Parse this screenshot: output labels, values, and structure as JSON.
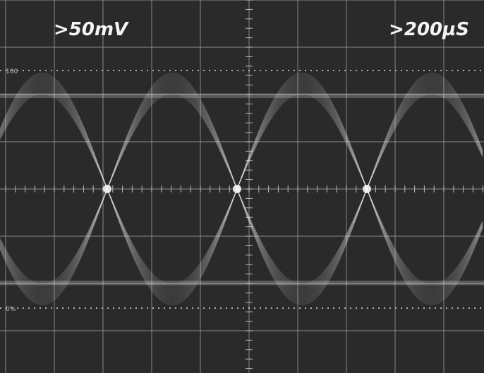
{
  "screen": {
    "volts_per_div": ">50mV",
    "time_per_div": ">200µS",
    "top_marker": "100",
    "bottom_marker": "0%"
  }
}
